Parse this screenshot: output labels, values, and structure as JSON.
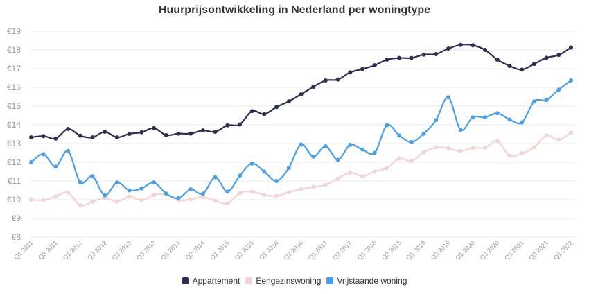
{
  "chart_data": {
    "type": "line",
    "title": "Huurprijsontwikkeling in Nederland per woningtype",
    "ylim": [
      8,
      19
    ],
    "y_ticks": [
      "€8",
      "€9",
      "€10",
      "€11",
      "€12",
      "€13",
      "€14",
      "€15",
      "€16",
      "€17",
      "€18",
      "€19"
    ],
    "x": [
      "Q1 2011",
      "Q2 2011",
      "Q3 2011",
      "Q4 2011",
      "Q1 2012",
      "Q2 2012",
      "Q3 2012",
      "Q4 2012",
      "Q1 2013",
      "Q2 2013",
      "Q3 2013",
      "Q4 2013",
      "Q1 2014",
      "Q2 2014",
      "Q3 2014",
      "Q4 2014",
      "Q1 2015",
      "Q2 2015",
      "Q3 2015",
      "Q4 2015",
      "Q1 2016",
      "Q2 2016",
      "Q3 2016",
      "Q4 2016",
      "Q1 2017",
      "Q2 2017",
      "Q3 2017",
      "Q4 2017",
      "Q1 2018",
      "Q2 2018",
      "Q3 2018",
      "Q4 2018",
      "Q1 2019",
      "Q2 2019",
      "Q3 2019",
      "Q4 2019",
      "Q1 2020",
      "Q2 2020",
      "Q3 2020",
      "Q4 2020",
      "Q1 2021",
      "Q2 2021",
      "Q3 2021",
      "Q4 2021",
      "Q1 2022"
    ],
    "x_tick_labels": [
      "Q1 2011",
      "Q3 2011",
      "Q1 2012",
      "Q3 2012",
      "Q1 2013",
      "Q3 2013",
      "Q1 2014",
      "Q3 2014",
      "Q1 2015",
      "Q3 2015",
      "Q1 2016",
      "Q3 2016",
      "Q1 2017",
      "Q3 2017",
      "Q1 2018",
      "Q3 2018",
      "Q1 2019",
      "Q3 2019",
      "Q1 2020",
      "Q3 2020",
      "Q1 2021",
      "Q3 2021",
      "Q1 2022"
    ],
    "series": [
      {
        "name": "Appartement",
        "color": "#2b3052",
        "values": [
          13.33,
          13.4,
          13.27,
          13.78,
          13.42,
          13.33,
          13.63,
          13.33,
          13.52,
          13.6,
          13.82,
          13.45,
          13.53,
          13.53,
          13.7,
          13.63,
          13.97,
          14.02,
          14.73,
          14.57,
          14.95,
          15.25,
          15.63,
          16.03,
          16.37,
          16.42,
          16.8,
          16.98,
          17.18,
          17.48,
          17.57,
          17.57,
          17.75,
          17.78,
          18.07,
          18.27,
          18.25,
          18.0,
          17.48,
          17.15,
          16.95,
          17.25,
          17.58,
          17.73,
          18.13
        ]
      },
      {
        "name": "Eengezinswoning",
        "color": "#f2d4d4",
        "values": [
          10.0,
          9.97,
          10.18,
          10.38,
          9.7,
          9.9,
          10.1,
          9.9,
          10.17,
          9.98,
          10.25,
          10.28,
          9.97,
          10.02,
          10.15,
          9.95,
          9.8,
          10.35,
          10.43,
          10.25,
          10.2,
          10.4,
          10.57,
          10.68,
          10.8,
          11.12,
          11.45,
          11.25,
          11.5,
          11.7,
          12.2,
          12.07,
          12.53,
          12.8,
          12.75,
          12.6,
          12.77,
          12.77,
          13.13,
          12.35,
          12.48,
          12.8,
          13.43,
          13.2,
          13.58
        ]
      },
      {
        "name": "Vrijstaande woning",
        "color": "#4a9fe9",
        "values": [
          12.0,
          12.43,
          11.77,
          12.6,
          10.93,
          11.25,
          10.23,
          10.92,
          10.5,
          10.6,
          10.92,
          10.33,
          10.08,
          10.55,
          10.32,
          11.2,
          10.43,
          11.28,
          11.93,
          11.5,
          11.0,
          11.7,
          12.95,
          12.3,
          12.85,
          12.13,
          12.93,
          12.68,
          12.5,
          13.98,
          13.43,
          13.08,
          13.53,
          14.25,
          15.47,
          13.73,
          14.4,
          14.4,
          14.62,
          14.28,
          14.12,
          15.25,
          15.33,
          15.88,
          16.37
        ]
      }
    ],
    "legend_position": "bottom",
    "grid": true
  }
}
